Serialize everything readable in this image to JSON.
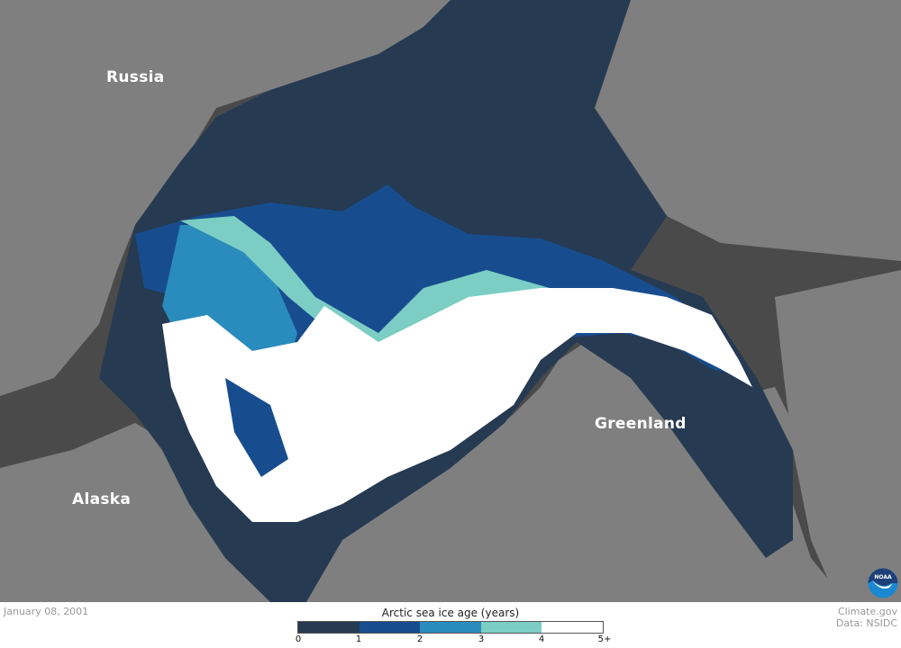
{
  "map": {
    "labels": {
      "russia": "Russia",
      "alaska": "Alaska",
      "greenland": "Greenland"
    },
    "colors": {
      "ocean": "#4a4a4a",
      "land": "#7f7f7f"
    }
  },
  "footer": {
    "date": "January 08, 2001",
    "credit_line1": "Climate.gov",
    "credit_line2": "Data: NSIDC",
    "logo": "NOAA"
  },
  "legend": {
    "title": "Arctic sea ice age (years)",
    "colors": [
      "#263a52",
      "#174d8e",
      "#2a8bbd",
      "#7ccec4",
      "#ffffff"
    ],
    "ticks": [
      "0",
      "1",
      "2",
      "3",
      "4",
      "5+"
    ]
  }
}
